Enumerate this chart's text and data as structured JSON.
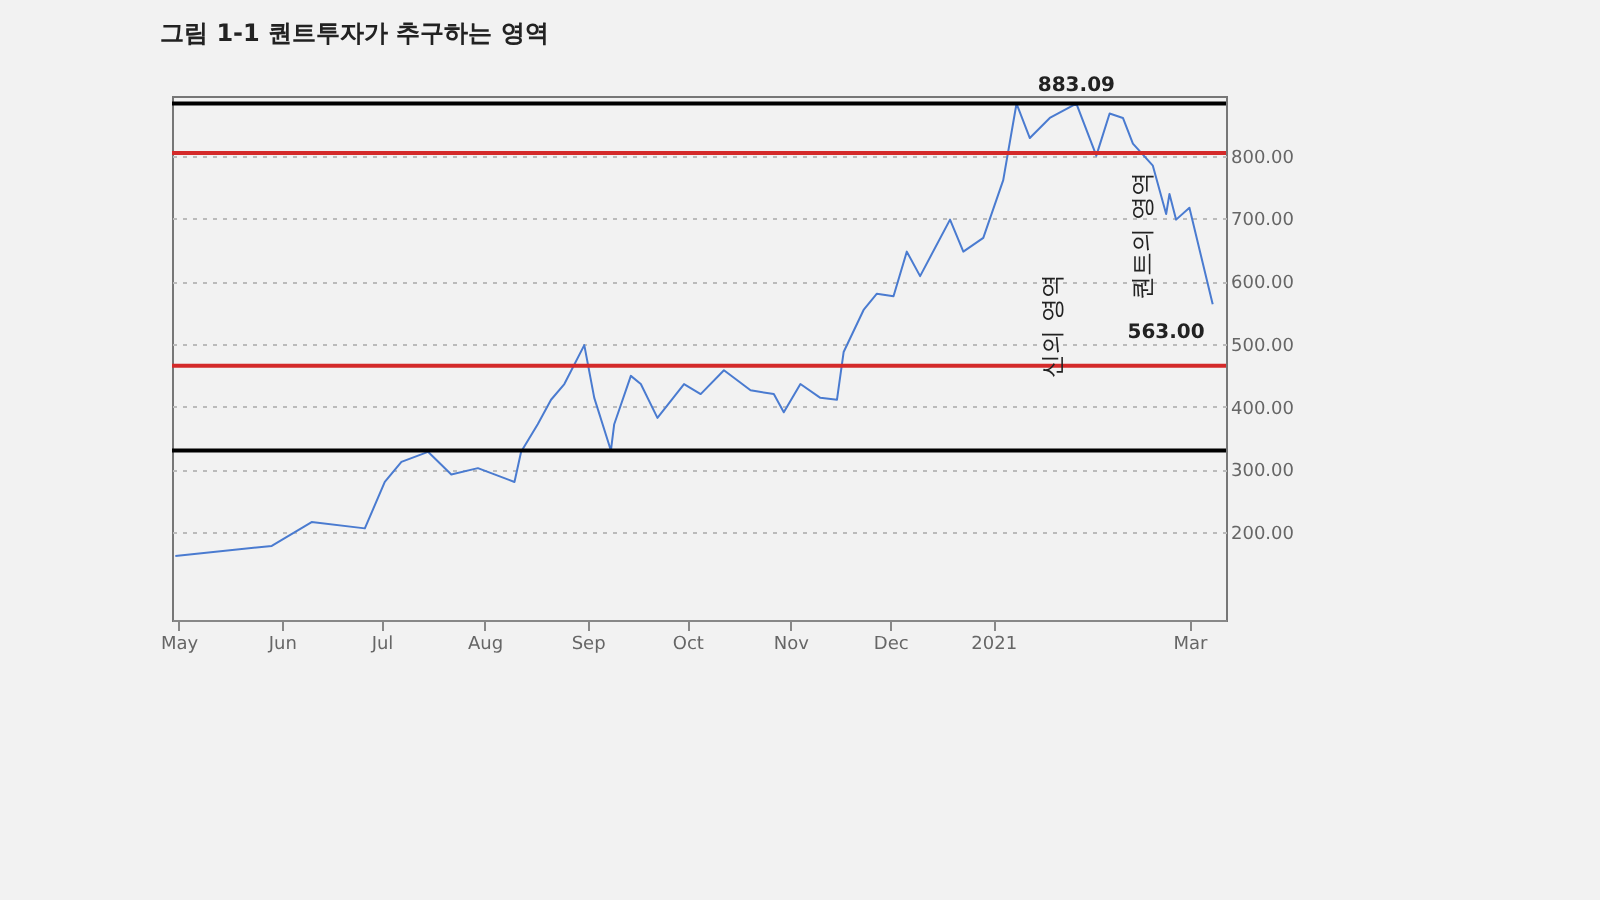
{
  "chart_data": {
    "type": "line",
    "title": "그림 1-1 퀀트투자가 추구하는 영역",
    "x": [
      "2020-04-30",
      "2020-05-29",
      "2020-06-10",
      "2020-06-26",
      "2020-07-02",
      "2020-07-07",
      "2020-07-15",
      "2020-07-22",
      "2020-07-30",
      "2020-08-10",
      "2020-08-12",
      "2020-08-17",
      "2020-08-21",
      "2020-08-25",
      "2020-08-31",
      "2020-09-03",
      "2020-09-08",
      "2020-09-09",
      "2020-09-14",
      "2020-09-17",
      "2020-09-22",
      "2020-09-30",
      "2020-10-05",
      "2020-10-12",
      "2020-10-20",
      "2020-10-27",
      "2020-10-30",
      "2020-11-04",
      "2020-11-10",
      "2020-11-15",
      "2020-11-17",
      "2020-11-23",
      "2020-11-27",
      "2020-12-02",
      "2020-12-06",
      "2020-12-10",
      "2020-12-19",
      "2020-12-23",
      "2020-12-29",
      "2021-01-04",
      "2021-01-08",
      "2021-01-12",
      "2021-01-18",
      "2021-01-26",
      "2021-02-01",
      "2021-02-05",
      "2021-02-09",
      "2021-02-12",
      "2021-02-18",
      "2021-02-22",
      "2021-02-23",
      "2021-02-25",
      "2021-03-01",
      "2021-03-08"
    ],
    "series": [
      {
        "color": "#4a7bd0",
        "values": [
          162,
          178,
          216,
          206,
          280,
          312,
          328,
          292,
          302,
          280,
          328,
          372,
          411,
          436,
          498,
          414,
          330,
          372,
          449,
          436,
          382,
          436,
          420,
          458,
          426,
          420,
          391,
          436,
          414,
          411,
          487,
          554,
          580,
          576,
          647,
          608,
          698,
          647,
          669,
          761,
          883,
          828,
          860,
          883,
          800,
          867,
          860,
          819,
          784,
          707,
          739,
          698,
          717,
          563
        ]
      }
    ],
    "xlim": [
      "2020-04-29",
      "2021-03-12"
    ],
    "xticks": [
      {
        "value": "2020-05-01",
        "label": "May"
      },
      {
        "value": "2020-06-01",
        "label": "Jun"
      },
      {
        "value": "2020-07-01",
        "label": "Jul"
      },
      {
        "value": "2020-08-01",
        "label": "Aug"
      },
      {
        "value": "2020-09-01",
        "label": "Sep"
      },
      {
        "value": "2020-10-01",
        "label": "Oct"
      },
      {
        "value": "2020-11-01",
        "label": "Nov"
      },
      {
        "value": "2020-12-01",
        "label": "Dec"
      },
      {
        "value": "2021-01-01",
        "label": "2021"
      },
      {
        "value": "2021-03-01",
        "label": "Mar"
      }
    ],
    "ylim": [
      60,
      895
    ],
    "yticks": [
      {
        "value": 200,
        "label": "200.00"
      },
      {
        "value": 300,
        "label": "300.00"
      },
      {
        "value": 400,
        "label": "400.00"
      },
      {
        "value": 500,
        "label": "500.00"
      },
      {
        "value": 600,
        "label": "600.00"
      },
      {
        "value": 700,
        "label": "700.00"
      },
      {
        "value": 800,
        "label": "800.00"
      }
    ],
    "grid": "y",
    "ref_lines": [
      {
        "axis": "y",
        "value": 883.09,
        "color": "#000000"
      },
      {
        "axis": "y",
        "value": 330,
        "color": "#000000"
      },
      {
        "axis": "y",
        "value": 804,
        "color": "#d42a2a"
      },
      {
        "axis": "y",
        "value": 465,
        "color": "#d42a2a"
      }
    ],
    "annotations": [
      "신의 영역",
      "퀀트의 영역",
      {
        "text": "883.09",
        "x": "2021-01-26",
        "y": 883.09
      },
      {
        "text": "563.00",
        "x": "2021-03-08",
        "y": 563
      }
    ]
  }
}
